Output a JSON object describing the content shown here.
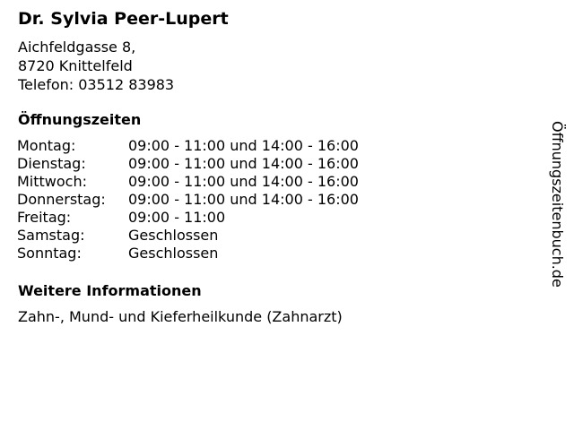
{
  "name": "Dr. Sylvia Peer-Lupert",
  "address": [
    "Aichfeldgasse 8,",
    "8720 Knittelfeld",
    "Telefon: 03512 83983"
  ],
  "hours_heading": "Öffnungszeiten",
  "hours": [
    {
      "day": "Montag:",
      "time": "09:00 - 11:00 und 14:00 - 16:00"
    },
    {
      "day": "Dienstag:",
      "time": "09:00 - 11:00 und 14:00 - 16:00"
    },
    {
      "day": "Mittwoch:",
      "time": "09:00 - 11:00 und 14:00 - 16:00"
    },
    {
      "day": "Donnerstag:",
      "time": "09:00 - 11:00 und 14:00 - 16:00"
    },
    {
      "day": "Freitag:",
      "time": "09:00 - 11:00"
    },
    {
      "day": "Samstag:",
      "time": "Geschlossen"
    },
    {
      "day": "Sonntag:",
      "time": "Geschlossen"
    }
  ],
  "info_heading": "Weitere Informationen",
  "info_text": "Zahn-, Mund- und Kieferheilkunde (Zahnarzt)",
  "watermark": "Öffnungszeitenbuch.de"
}
